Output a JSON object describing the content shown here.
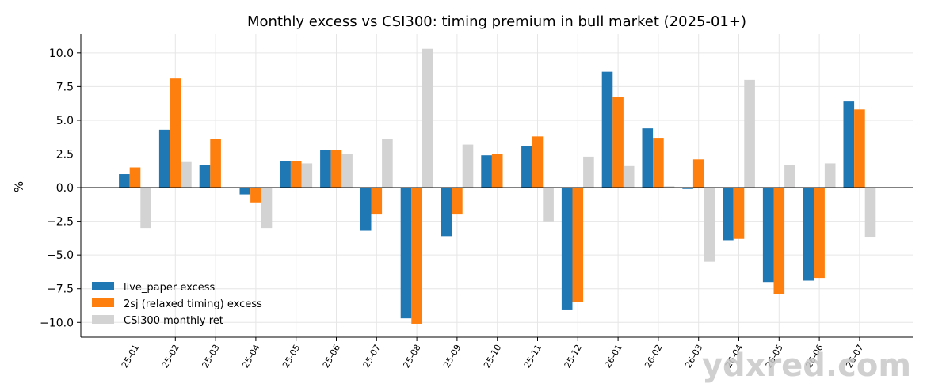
{
  "chart_data": {
    "type": "bar",
    "title": "Monthly excess vs CSI300: timing premium in bull market (2025-01+)",
    "xlabel": "",
    "ylabel": "%",
    "ylim": [
      -11.1,
      11.4
    ],
    "yticks": [
      -10.0,
      -7.5,
      -5.0,
      -2.5,
      0.0,
      2.5,
      5.0,
      7.5,
      10.0
    ],
    "ytick_labels": [
      "−10.0",
      "−7.5",
      "−5.0",
      "−2.5",
      "0.0",
      "2.5",
      "5.0",
      "7.5",
      "10.0"
    ],
    "grid": true,
    "legend_position": "lower-left",
    "categories": [
      "25-01",
      "25-02",
      "25-03",
      "25-04",
      "25-05",
      "25-06",
      "25-07",
      "25-08",
      "25-09",
      "25-10",
      "25-11",
      "25-12",
      "26-01",
      "26-02",
      "26-03",
      "26-04",
      "26-05",
      "26-06",
      "26-07"
    ],
    "series": [
      {
        "name": "live_paper excess",
        "color": "#1f77b4",
        "values": [
          1.0,
          4.3,
          1.7,
          -0.5,
          2.0,
          2.8,
          -3.2,
          -9.7,
          -3.6,
          2.4,
          3.1,
          -9.1,
          8.6,
          4.4,
          -0.1,
          -3.9,
          -7.0,
          -6.9,
          6.4
        ]
      },
      {
        "name": "2sj (relaxed timing) excess",
        "color": "#ff7f0e",
        "values": [
          1.5,
          8.1,
          3.6,
          -1.1,
          2.0,
          2.8,
          -2.0,
          -10.1,
          -2.0,
          2.5,
          3.8,
          -8.5,
          6.7,
          3.7,
          2.1,
          -3.8,
          -7.9,
          -6.7,
          5.8
        ]
      },
      {
        "name": "CSI300 monthly ret",
        "color": "#d3d3d3",
        "values": [
          -3.0,
          1.9,
          null,
          -3.0,
          1.8,
          2.5,
          3.6,
          10.3,
          3.2,
          null,
          -2.5,
          2.3,
          1.6,
          0.1,
          -5.5,
          8.0,
          1.7,
          1.8,
          -3.7
        ]
      }
    ]
  },
  "watermark": "ydxred.com"
}
